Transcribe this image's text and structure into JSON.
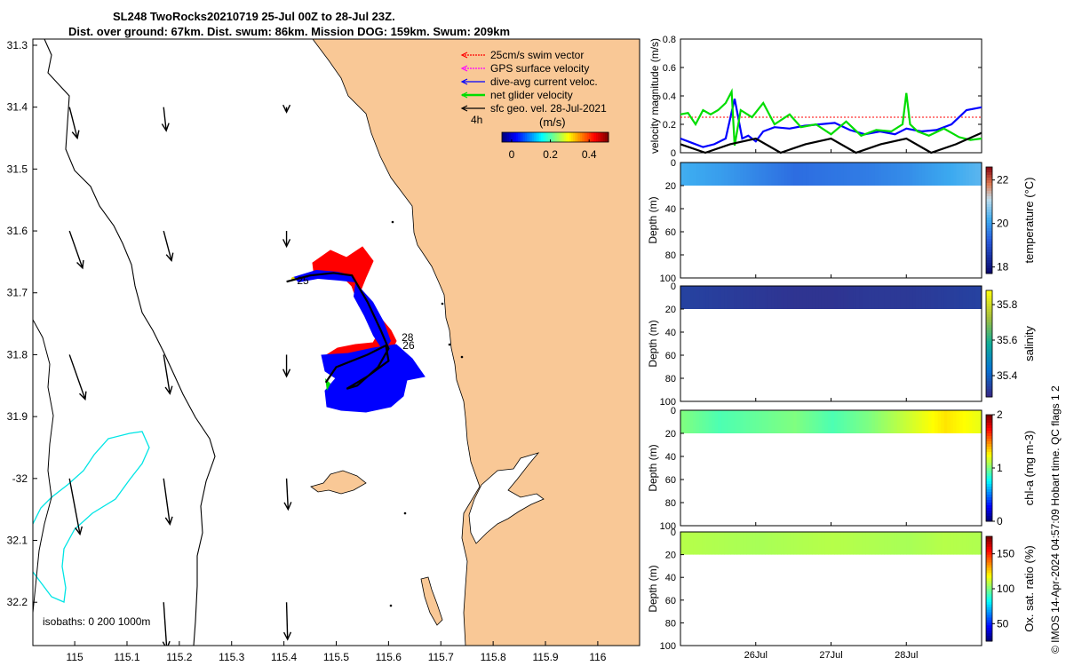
{
  "figure": {
    "title_line1": "SL248 TwoRocks20210719 25-Jul 00Z to 28-Jul 23Z.",
    "title_line2": "Dist. over ground: 67km. Dist. swum: 86km. Mission DOG: 159km. Swum: 209km",
    "credit": "© IMOS 14-Apr-2024 04:57:09 Hobart time. QC flags 1  2"
  },
  "colors": {
    "land": "#f9c896",
    "swim_vector": "#ff0000",
    "gps_velocity": "#ff00ff",
    "dive_avg_current": "#0000ff",
    "net_glider_velocity": "#00dd00",
    "sfc_geo_velocity": "#000000",
    "isobath_200": "#00e5e5",
    "isobath_1000": "#000000"
  },
  "chart_data": [
    {
      "type": "scatter",
      "name": "map",
      "xlim": [
        114.92,
        116.08
      ],
      "ylim": [
        -32.27,
        -31.29
      ],
      "xticks": [
        115,
        115.1,
        115.2,
        115.3,
        115.4,
        115.5,
        115.6,
        115.7,
        115.8,
        115.9,
        116
      ],
      "xtick_labels": [
        "115",
        "115.1",
        "115.2",
        "115.3",
        "115.4",
        "115.5",
        "115.6",
        "115.7",
        "115.8",
        "115.9",
        "116"
      ],
      "yticks": [
        -31.3,
        -31.4,
        -31.5,
        -31.6,
        -31.7,
        -31.8,
        -31.9,
        -32,
        -32.1,
        -32.2
      ],
      "ytick_labels": [
        "31.3",
        "31.4",
        "31.5",
        "31.6",
        "31.7",
        "31.8",
        "31.9",
        "-32",
        "32.1",
        "32.2"
      ],
      "legend": {
        "placement": "top-right",
        "entries": [
          "25cm/s swim vector",
          "GPS surface velocity",
          "dive-avg current veloc.",
          "net glider velocity",
          "sfc geo. vel. 28-Jul-2021"
        ],
        "interval_label": "4h",
        "colorbar_label": "(m/s)",
        "colorbar_ticks": [
          "0",
          "0.2",
          "0.4"
        ],
        "colorbar_range": [
          -0.05,
          0.5
        ]
      },
      "isobath_label": "isobaths: 0   200  1000m",
      "day_labels": [
        {
          "text": "28",
          "x": 115.625,
          "y": -31.778
        },
        {
          "text": "26",
          "x": 115.627,
          "y": -31.791
        },
        {
          "text": "25",
          "x": 115.425,
          "y": -31.686
        }
      ],
      "track": [
        {
          "x": 115.405,
          "y": -31.682
        },
        {
          "x": 115.45,
          "y": -31.672
        },
        {
          "x": 115.495,
          "y": -31.668
        },
        {
          "x": 115.53,
          "y": -31.672
        },
        {
          "x": 115.56,
          "y": -31.715
        },
        {
          "x": 115.585,
          "y": -31.76
        },
        {
          "x": 115.6,
          "y": -31.79
        },
        {
          "x": 115.58,
          "y": -31.82
        },
        {
          "x": 115.54,
          "y": -31.85
        },
        {
          "x": 115.52,
          "y": -31.855
        },
        {
          "x": 115.56,
          "y": -31.835
        },
        {
          "x": 115.6,
          "y": -31.81
        },
        {
          "x": 115.595,
          "y": -31.785
        },
        {
          "x": 115.56,
          "y": -31.8
        },
        {
          "x": 115.5,
          "y": -31.82
        },
        {
          "x": 115.48,
          "y": -31.845
        }
      ],
      "geostrophic_arrows": [
        {
          "x": 114.99,
          "y": -31.4,
          "u": 0.015,
          "v": -0.05
        },
        {
          "x": 115.17,
          "y": -31.4,
          "u": 0.005,
          "v": -0.038
        },
        {
          "x": 115.405,
          "y": -31.4,
          "u": 0,
          "v": -0.008
        },
        {
          "x": 114.99,
          "y": -31.6,
          "u": 0.025,
          "v": -0.06
        },
        {
          "x": 115.17,
          "y": -31.6,
          "u": 0.015,
          "v": -0.048
        },
        {
          "x": 115.405,
          "y": -31.6,
          "u": 0,
          "v": -0.025
        },
        {
          "x": 114.99,
          "y": -31.8,
          "u": 0.03,
          "v": -0.072
        },
        {
          "x": 115.17,
          "y": -31.8,
          "u": 0.012,
          "v": -0.063
        },
        {
          "x": 115.405,
          "y": -31.8,
          "u": 0,
          "v": -0.035
        },
        {
          "x": 114.99,
          "y": -32.0,
          "u": 0.02,
          "v": -0.09
        },
        {
          "x": 115.17,
          "y": -32.0,
          "u": 0.012,
          "v": -0.074
        },
        {
          "x": 115.405,
          "y": -32.0,
          "u": 0.003,
          "v": -0.05
        },
        {
          "x": 115.17,
          "y": -32.2,
          "u": 0.006,
          "v": -0.075
        },
        {
          "x": 115.405,
          "y": -32.2,
          "u": 0.002,
          "v": -0.06
        }
      ]
    },
    {
      "type": "line",
      "name": "velocity",
      "ylabel": "velocity magnitude (m/s)",
      "ylim": [
        0,
        0.8
      ],
      "yticks": [
        0,
        0.2,
        0.4,
        0.6,
        0.8
      ],
      "ytick_labels": [
        "0",
        "0.2",
        "0.4",
        "0.6",
        "0.8"
      ],
      "xlim": [
        0,
        4
      ],
      "series": [
        {
          "name": "25cm/s swim vector",
          "x": [
            0,
            4
          ],
          "y": [
            0.25,
            0.25
          ]
        },
        {
          "name": "dive-avg current veloc.",
          "x": [
            0,
            0.15,
            0.3,
            0.45,
            0.6,
            0.72,
            0.82,
            0.9,
            1.0,
            1.1,
            1.25,
            1.45,
            1.65,
            1.85,
            2.05,
            2.25,
            2.45,
            2.65,
            2.85,
            3.0,
            3.2,
            3.4,
            3.6,
            3.8,
            4.0
          ],
          "y": [
            0.1,
            0.07,
            0.04,
            0.06,
            0.1,
            0.38,
            0.1,
            0.12,
            0.08,
            0.15,
            0.18,
            0.17,
            0.19,
            0.2,
            0.21,
            0.16,
            0.13,
            0.15,
            0.13,
            0.17,
            0.15,
            0.16,
            0.2,
            0.3,
            0.32
          ]
        },
        {
          "name": "net glider velocity",
          "x": [
            0,
            0.1,
            0.2,
            0.3,
            0.4,
            0.5,
            0.6,
            0.68,
            0.72,
            0.8,
            0.95,
            1.1,
            1.25,
            1.45,
            1.6,
            1.8,
            2.0,
            2.2,
            2.4,
            2.6,
            2.8,
            2.95,
            3.0,
            3.05,
            3.15,
            3.3,
            3.5,
            3.7,
            3.85,
            4.0
          ],
          "y": [
            0.27,
            0.28,
            0.2,
            0.3,
            0.27,
            0.3,
            0.35,
            0.43,
            0.05,
            0.3,
            0.25,
            0.35,
            0.2,
            0.27,
            0.18,
            0.2,
            0.13,
            0.22,
            0.12,
            0.16,
            0.15,
            0.2,
            0.42,
            0.2,
            0.15,
            0.12,
            0.17,
            0.11,
            0.09,
            0.1
          ]
        },
        {
          "name": "sfc geo. vel.",
          "x": [
            0,
            0.33,
            0.66,
            1.0,
            1.33,
            1.66,
            2.0,
            2.33,
            2.66,
            3.0,
            3.33,
            3.66,
            4.0
          ],
          "y": [
            0.06,
            0.0,
            0.06,
            0.1,
            0.0,
            0.06,
            0.1,
            0.0,
            0.06,
            0.1,
            0.0,
            0.06,
            0.14
          ]
        }
      ]
    },
    {
      "type": "heatmap",
      "name": "temperature",
      "ylabel": "Depth (m)",
      "cbar_label": "temperature (°C)",
      "cbar_ticks": [
        "18",
        "20",
        "22"
      ],
      "cbar_range": [
        17.7,
        22.6
      ],
      "ylim": [
        100,
        0
      ],
      "yticks": [
        "0",
        "20",
        "40",
        "60",
        "80",
        "100"
      ],
      "depth_range": [
        0,
        20
      ],
      "x": [
        0,
        0.5,
        1.0,
        1.5,
        2.0,
        2.5,
        3.0,
        3.5,
        4.0
      ],
      "values": [
        20.2,
        20.0,
        19.7,
        19.4,
        19.5,
        19.6,
        19.8,
        20.1,
        20.4
      ]
    },
    {
      "type": "heatmap",
      "name": "salinity",
      "ylabel": "Depth (m)",
      "cbar_label": "salinity",
      "cbar_ticks": [
        "35.4",
        "35.6",
        "35.8"
      ],
      "cbar_range": [
        35.28,
        35.88
      ],
      "ylim": [
        100,
        0
      ],
      "yticks": [
        "0",
        "20",
        "40",
        "60",
        "80",
        "100"
      ],
      "depth_range": [
        0,
        20
      ],
      "x": [
        0,
        0.5,
        1.0,
        1.5,
        2.0,
        2.5,
        3.0,
        3.5,
        4.0
      ],
      "values": [
        35.33,
        35.32,
        35.31,
        35.3,
        35.3,
        35.31,
        35.31,
        35.32,
        35.33
      ]
    },
    {
      "type": "heatmap",
      "name": "chlorophyll",
      "ylabel": "Depth (m)",
      "cbar_label": "chl-a (mg m-3)",
      "cbar_ticks": [
        "0",
        "1",
        "2"
      ],
      "cbar_range": [
        0,
        2
      ],
      "ylim": [
        100,
        0
      ],
      "yticks": [
        "0",
        "20",
        "40",
        "60",
        "80",
        "100"
      ],
      "depth_range": [
        0,
        20
      ],
      "x": [
        0,
        0.5,
        1.0,
        1.5,
        2.0,
        2.5,
        3.0,
        3.5,
        4.0
      ],
      "values": [
        1.0,
        0.9,
        0.95,
        1.0,
        0.9,
        1.0,
        1.15,
        1.3,
        1.2
      ]
    },
    {
      "type": "heatmap",
      "name": "oxygen",
      "ylabel": "Depth (m)",
      "cbar_label": "Ox. sat. ratio (%)",
      "cbar_ticks": [
        "50",
        "100",
        "150"
      ],
      "cbar_range": [
        25,
        175
      ],
      "ylim": [
        100,
        0
      ],
      "yticks": [
        "0",
        "20",
        "40",
        "60",
        "80",
        "100"
      ],
      "depth_range": [
        0,
        20
      ],
      "x": [
        0,
        0.5,
        1.0,
        1.5,
        2.0,
        2.5,
        3.0,
        3.5,
        4.0
      ],
      "values": [
        108,
        107,
        106,
        107,
        108,
        107,
        106,
        108,
        107
      ]
    }
  ],
  "time_axis": {
    "range": [
      0,
      4
    ],
    "ticks": [
      1,
      2,
      3
    ],
    "labels": [
      "26Jul",
      "27Jul",
      "28Jul"
    ]
  }
}
